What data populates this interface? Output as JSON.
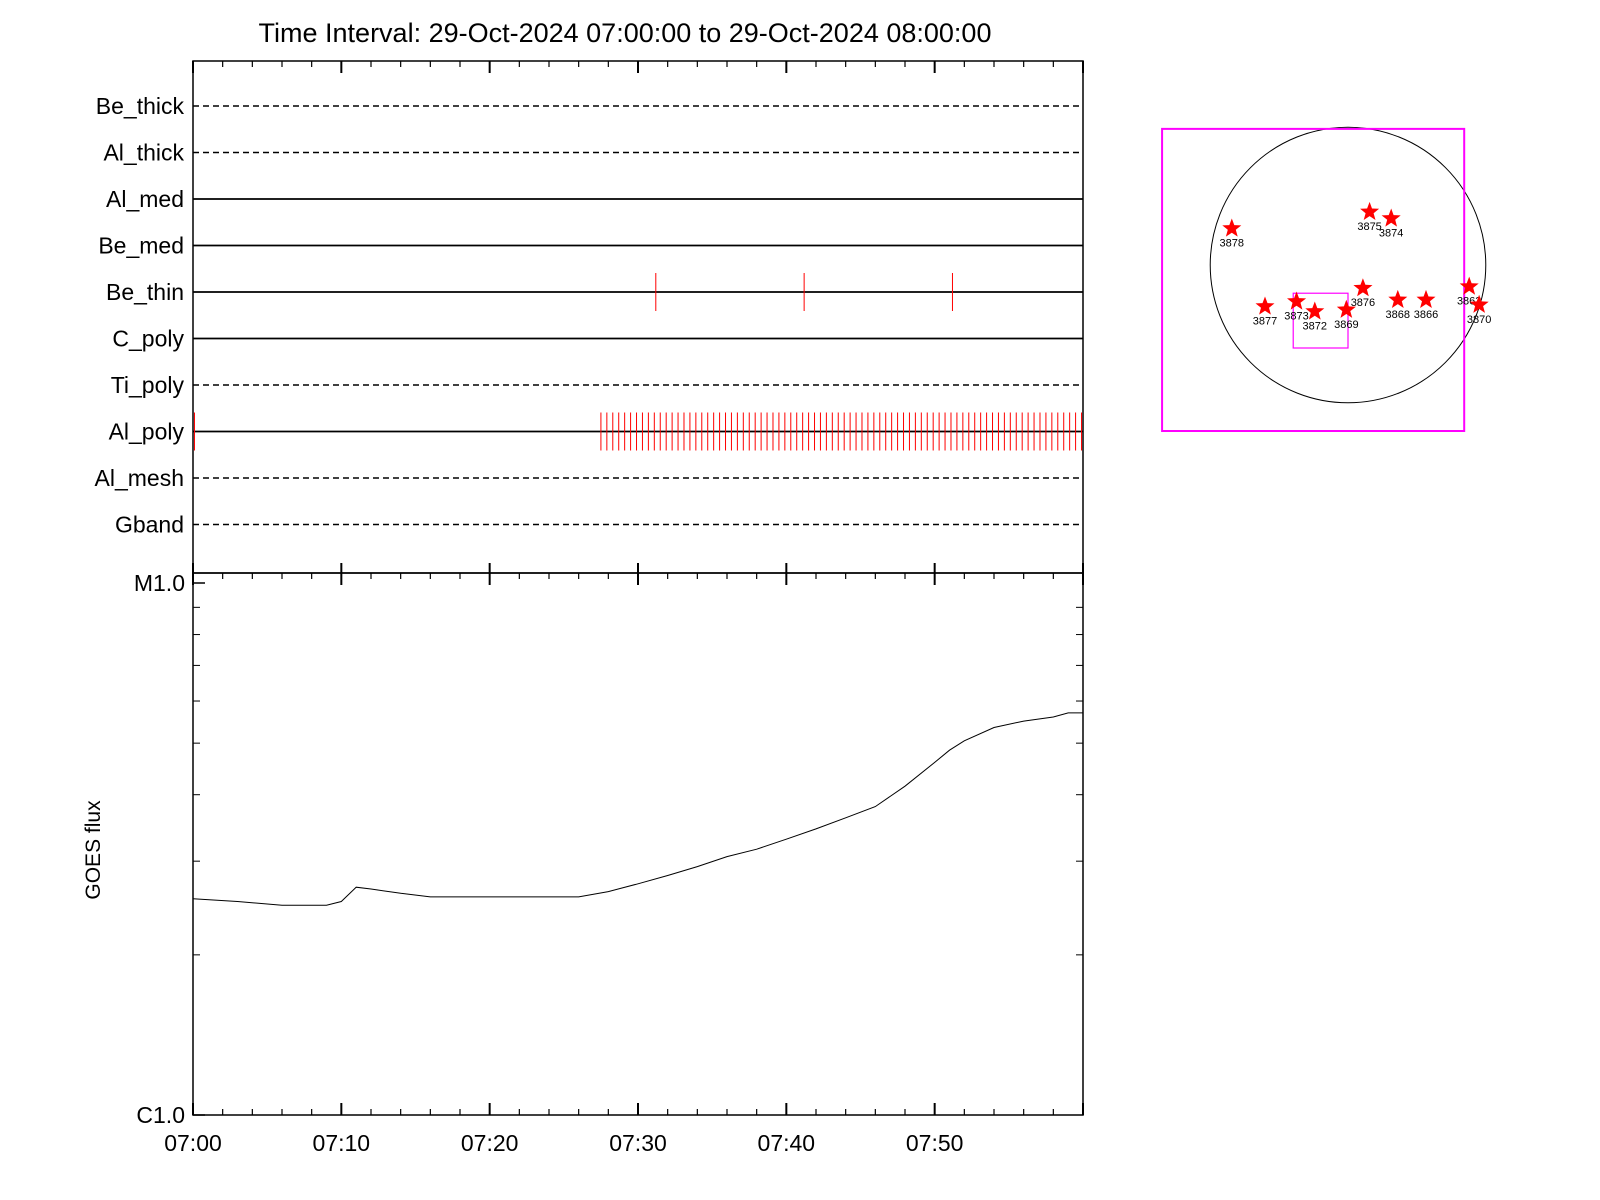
{
  "title": "Time Interval: 29-Oct-2024 07:00:00 to 29-Oct-2024 08:00:00",
  "chart_data": [
    {
      "type": "timeline",
      "channels": [
        {
          "name": "Be_thick",
          "line": "dashed",
          "marks": []
        },
        {
          "name": "Al_thick",
          "line": "dashed",
          "marks": []
        },
        {
          "name": "Al_med",
          "line": "solid",
          "marks": []
        },
        {
          "name": "Be_med",
          "line": "solid",
          "marks": []
        },
        {
          "name": "Be_thin",
          "line": "solid",
          "marks": [
            31.2,
            41.2,
            51.2
          ]
        },
        {
          "name": "C_poly",
          "line": "solid",
          "marks": []
        },
        {
          "name": "Ti_poly",
          "line": "dashed",
          "marks": []
        },
        {
          "name": "Al_poly",
          "line": "solid",
          "marks": [
            0.1
          ],
          "dense_marks": {
            "from": 27.5,
            "to": 59.9,
            "step": 0.4
          }
        },
        {
          "name": "Al_mesh",
          "line": "dashed",
          "marks": []
        },
        {
          "name": "Gband",
          "line": "dashed",
          "marks": []
        }
      ],
      "mark_color": "#ff0000",
      "x_range_min": [
        0,
        60
      ]
    },
    {
      "type": "line",
      "ylabel": "GOES flux",
      "y_scale": "log",
      "y_range": [
        1e-06,
        1e-05
      ],
      "y_ticks": [
        {
          "value": 1e-05,
          "label": "M1.0"
        },
        {
          "value": 1e-06,
          "label": "C1.0"
        }
      ],
      "x_ticks": [
        "07:00",
        "07:10",
        "07:20",
        "07:30",
        "07:40",
        "07:50"
      ],
      "x_range_min": [
        0,
        60
      ],
      "series": [
        {
          "x_min": [
            0,
            3,
            6,
            9,
            10,
            11,
            12,
            14,
            16,
            20,
            24,
            26,
            28,
            30,
            32,
            34,
            36,
            38,
            40,
            42,
            44,
            46,
            48,
            50,
            51,
            52,
            54,
            56,
            58,
            59,
            60
          ],
          "y": [
            2.55e-06,
            2.52e-06,
            2.48e-06,
            2.48e-06,
            2.52e-06,
            2.68e-06,
            2.66e-06,
            2.61e-06,
            2.57e-06,
            2.57e-06,
            2.57e-06,
            2.57e-06,
            2.63e-06,
            2.72e-06,
            2.82e-06,
            2.93e-06,
            3.06e-06,
            3.16e-06,
            3.3e-06,
            3.45e-06,
            3.62e-06,
            3.8e-06,
            4.15e-06,
            4.6e-06,
            4.85e-06,
            5.05e-06,
            5.35e-06,
            5.5e-06,
            5.6e-06,
            5.7e-06,
            5.7e-06
          ]
        }
      ]
    },
    {
      "type": "scatter",
      "markers": [
        {
          "label": "3878",
          "x": -700,
          "y": 220
        },
        {
          "label": "3875",
          "x": 130,
          "y": 320
        },
        {
          "label": "3874",
          "x": 260,
          "y": 280
        },
        {
          "label": "3876",
          "x": 90,
          "y": -140
        },
        {
          "label": "3877",
          "x": -500,
          "y": -250
        },
        {
          "label": "3873",
          "x": -310,
          "y": -220
        },
        {
          "label": "3872",
          "x": -200,
          "y": -280
        },
        {
          "label": "3869",
          "x": -10,
          "y": -270
        },
        {
          "label": "3868",
          "x": 300,
          "y": -210
        },
        {
          "label": "3866",
          "x": 470,
          "y": -210
        },
        {
          "label": "3863",
          "x": 730,
          "y": -130
        },
        {
          "label": "3870",
          "x": 790,
          "y": -240
        }
      ],
      "marker_color": "#ff0000",
      "box_color": "#ff00ff",
      "box": {
        "x1": -1120,
        "y1": -1000,
        "x2": 700,
        "y2": 820
      },
      "inner_box": {
        "x1": -330,
        "y1": -500,
        "x2": 0,
        "y2": -170
      },
      "disk_radius": 830
    }
  ]
}
